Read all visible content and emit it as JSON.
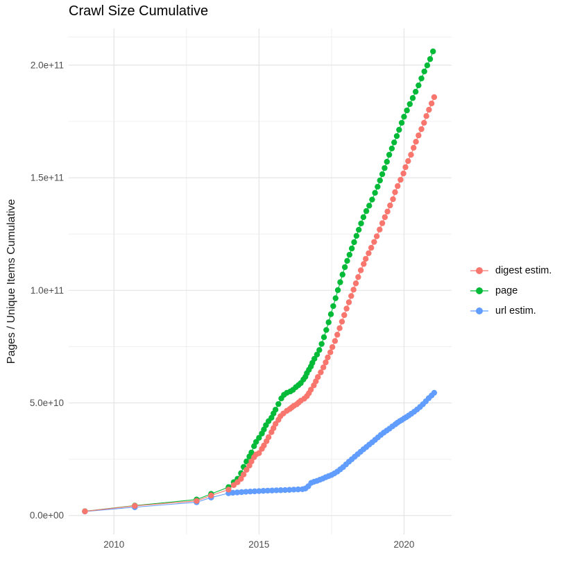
{
  "title": "Crawl Size Cumulative",
  "chart_data": {
    "type": "line",
    "title": "Crawl Size Cumulative",
    "xlabel": "",
    "ylabel": "Pages / Unique Items Cumulative",
    "value_unit": "billions (1e9) of pages / unique items",
    "xlim": [
      2008.44,
      2021.64
    ],
    "ylim": [
      -8.4,
      216.3
    ],
    "grid": true,
    "legend_position": "right",
    "x_ticks": [
      {
        "value": 2010,
        "label": "2010"
      },
      {
        "value": 2015,
        "label": "2015"
      },
      {
        "value": 2020,
        "label": "2020"
      }
    ],
    "x_minor_ticks": [
      2012.5,
      2017.5
    ],
    "y_ticks": [
      {
        "value": 0,
        "label": "0.0e+00"
      },
      {
        "value": 50,
        "label": "5.0e+10"
      },
      {
        "value": 100,
        "label": "1.0e+11"
      },
      {
        "value": 150,
        "label": "1.5e+11"
      },
      {
        "value": 200,
        "label": "2.0e+11"
      }
    ],
    "y_minor_ticks": [
      25,
      75,
      125,
      175,
      212.5
    ],
    "series": [
      {
        "name": "digest estim.",
        "color": "#F8766D",
        "points": [
          [
            2009.0,
            1.85
          ],
          [
            2010.72,
            4.3
          ],
          [
            2012.85,
            6.5
          ],
          [
            2013.35,
            8.9
          ],
          [
            2013.95,
            11.5
          ],
          [
            2014.13,
            13.5
          ],
          [
            2014.26,
            14.8
          ],
          [
            2014.38,
            16.3
          ],
          [
            2014.47,
            18.2
          ],
          [
            2014.57,
            20.3
          ],
          [
            2014.67,
            22.2
          ],
          [
            2014.74,
            24.0
          ],
          [
            2014.83,
            25.9
          ],
          [
            2014.9,
            27.1
          ],
          [
            2015.0,
            27.7
          ],
          [
            2015.1,
            29.6
          ],
          [
            2015.17,
            31.1
          ],
          [
            2015.26,
            33.0
          ],
          [
            2015.33,
            34.8
          ],
          [
            2015.43,
            37.0
          ],
          [
            2015.5,
            38.8
          ],
          [
            2015.57,
            40.7
          ],
          [
            2015.67,
            42.5
          ],
          [
            2015.74,
            44.1
          ],
          [
            2015.84,
            45.3
          ],
          [
            2015.96,
            46.5
          ],
          [
            2016.06,
            47.3
          ],
          [
            2016.13,
            48.0
          ],
          [
            2016.2,
            48.7
          ],
          [
            2016.3,
            49.4
          ],
          [
            2016.37,
            50.2
          ],
          [
            2016.44,
            51.0
          ],
          [
            2016.56,
            51.9
          ],
          [
            2016.65,
            53.0
          ],
          [
            2016.72,
            54.3
          ],
          [
            2016.79,
            55.9
          ],
          [
            2016.89,
            57.8
          ],
          [
            2016.96,
            59.6
          ],
          [
            2017.03,
            61.5
          ],
          [
            2017.13,
            63.6
          ],
          [
            2017.22,
            65.8
          ],
          [
            2017.3,
            68.0
          ],
          [
            2017.37,
            70.2
          ],
          [
            2017.46,
            72.5
          ],
          [
            2017.53,
            74.8
          ],
          [
            2017.62,
            77.5
          ],
          [
            2017.7,
            80.3
          ],
          [
            2017.78,
            83.2
          ],
          [
            2017.86,
            86.1
          ],
          [
            2017.94,
            89.0
          ],
          [
            2018.02,
            91.9
          ],
          [
            2018.1,
            94.7
          ],
          [
            2018.18,
            97.5
          ],
          [
            2018.26,
            100.3
          ],
          [
            2018.34,
            103.1
          ],
          [
            2018.42,
            105.9
          ],
          [
            2018.51,
            108.9
          ],
          [
            2018.61,
            111.7
          ],
          [
            2018.68,
            114.0
          ],
          [
            2018.78,
            116.5
          ],
          [
            2018.87,
            118.9
          ],
          [
            2018.97,
            121.5
          ],
          [
            2019.06,
            124.0
          ],
          [
            2019.16,
            127.0
          ],
          [
            2019.25,
            129.8
          ],
          [
            2019.34,
            132.5
          ],
          [
            2019.43,
            135.0
          ],
          [
            2019.52,
            137.7
          ],
          [
            2019.62,
            140.5
          ],
          [
            2019.69,
            143.6
          ],
          [
            2019.78,
            146.3
          ],
          [
            2019.88,
            149.1
          ],
          [
            2019.98,
            151.9
          ],
          [
            2020.05,
            154.7
          ],
          [
            2020.14,
            157.4
          ],
          [
            2020.24,
            160.2
          ],
          [
            2020.33,
            163.3
          ],
          [
            2020.41,
            166.0
          ],
          [
            2020.5,
            168.8
          ],
          [
            2020.6,
            171.6
          ],
          [
            2020.69,
            174.4
          ],
          [
            2020.77,
            177.4
          ],
          [
            2020.86,
            180.2
          ],
          [
            2020.95,
            183.0
          ],
          [
            2021.04,
            185.8
          ]
        ]
      },
      {
        "name": "page",
        "color": "#00BA38",
        "points": [
          [
            2009.0,
            1.9
          ],
          [
            2010.72,
            4.4
          ],
          [
            2012.85,
            7.1
          ],
          [
            2013.35,
            9.6
          ],
          [
            2013.95,
            12.6
          ],
          [
            2014.13,
            14.8
          ],
          [
            2014.26,
            16.3
          ],
          [
            2014.38,
            18.8
          ],
          [
            2014.47,
            21.6
          ],
          [
            2014.57,
            24.0
          ],
          [
            2014.67,
            26.2
          ],
          [
            2014.74,
            28.0
          ],
          [
            2014.83,
            30.8
          ],
          [
            2014.9,
            32.7
          ],
          [
            2015.0,
            34.5
          ],
          [
            2015.1,
            36.4
          ],
          [
            2015.17,
            38.2
          ],
          [
            2015.24,
            40.1
          ],
          [
            2015.33,
            41.9
          ],
          [
            2015.43,
            43.4
          ],
          [
            2015.5,
            45.3
          ],
          [
            2015.57,
            47.0
          ],
          [
            2015.67,
            49.5
          ],
          [
            2015.77,
            52.0
          ],
          [
            2015.86,
            53.6
          ],
          [
            2015.96,
            54.5
          ],
          [
            2016.08,
            55.1
          ],
          [
            2016.17,
            55.8
          ],
          [
            2016.27,
            57.0
          ],
          [
            2016.36,
            57.9
          ],
          [
            2016.44,
            58.8
          ],
          [
            2016.53,
            60.4
          ],
          [
            2016.6,
            61.6
          ],
          [
            2016.65,
            63.2
          ],
          [
            2016.72,
            64.7
          ],
          [
            2016.79,
            66.2
          ],
          [
            2016.84,
            67.8
          ],
          [
            2016.91,
            69.6
          ],
          [
            2017.0,
            71.5
          ],
          [
            2017.08,
            73.5
          ],
          [
            2017.16,
            76.2
          ],
          [
            2017.24,
            79.2
          ],
          [
            2017.32,
            82.4
          ],
          [
            2017.4,
            85.8
          ],
          [
            2017.48,
            89.4
          ],
          [
            2017.56,
            93.0
          ],
          [
            2017.64,
            96.5
          ],
          [
            2017.72,
            100.1
          ],
          [
            2017.8,
            103.6
          ],
          [
            2017.88,
            107.0
          ],
          [
            2017.96,
            110.3
          ],
          [
            2018.04,
            113.1
          ],
          [
            2018.12,
            115.8
          ],
          [
            2018.2,
            118.6
          ],
          [
            2018.28,
            121.4
          ],
          [
            2018.36,
            124.2
          ],
          [
            2018.44,
            126.9
          ],
          [
            2018.52,
            129.7
          ],
          [
            2018.6,
            132.5
          ],
          [
            2018.7,
            135.2
          ],
          [
            2018.8,
            137.6
          ],
          [
            2018.9,
            140.3
          ],
          [
            2019.0,
            143.3
          ],
          [
            2019.09,
            146.0
          ],
          [
            2019.17,
            148.8
          ],
          [
            2019.25,
            151.6
          ],
          [
            2019.33,
            154.3
          ],
          [
            2019.41,
            157.1
          ],
          [
            2019.49,
            160.2
          ],
          [
            2019.58,
            163.0
          ],
          [
            2019.66,
            165.7
          ],
          [
            2019.75,
            168.5
          ],
          [
            2019.83,
            171.3
          ],
          [
            2019.92,
            174.4
          ],
          [
            2020.0,
            177.1
          ],
          [
            2020.1,
            179.9
          ],
          [
            2020.2,
            182.7
          ],
          [
            2020.3,
            185.4
          ],
          [
            2020.4,
            188.2
          ],
          [
            2020.5,
            191.0
          ],
          [
            2020.6,
            194.1
          ],
          [
            2020.7,
            197.2
          ],
          [
            2020.8,
            199.9
          ],
          [
            2020.9,
            202.7
          ],
          [
            2021.0,
            206.1
          ]
        ]
      },
      {
        "name": "url estim.",
        "color": "#619CFF",
        "points": [
          [
            2009.0,
            1.8
          ],
          [
            2010.72,
            3.7
          ],
          [
            2012.85,
            5.9
          ],
          [
            2013.35,
            8.0
          ],
          [
            2013.95,
            9.9
          ],
          [
            2014.1,
            10.1
          ],
          [
            2014.25,
            10.25
          ],
          [
            2014.4,
            10.4
          ],
          [
            2014.55,
            10.55
          ],
          [
            2014.7,
            10.65
          ],
          [
            2014.85,
            10.75
          ],
          [
            2015.0,
            10.85
          ],
          [
            2015.15,
            10.95
          ],
          [
            2015.3,
            11.05
          ],
          [
            2015.45,
            11.1
          ],
          [
            2015.6,
            11.2
          ],
          [
            2015.75,
            11.25
          ],
          [
            2015.9,
            11.3
          ],
          [
            2016.05,
            11.4
          ],
          [
            2016.2,
            11.5
          ],
          [
            2016.35,
            11.6
          ],
          [
            2016.5,
            11.7
          ],
          [
            2016.6,
            12.0
          ],
          [
            2016.7,
            13.0
          ],
          [
            2016.8,
            14.5
          ],
          [
            2016.9,
            15.0
          ],
          [
            2017.0,
            15.4
          ],
          [
            2017.1,
            15.9
          ],
          [
            2017.2,
            16.4
          ],
          [
            2017.3,
            17.0
          ],
          [
            2017.4,
            17.5
          ],
          [
            2017.5,
            18.0
          ],
          [
            2017.6,
            18.7
          ],
          [
            2017.7,
            19.5
          ],
          [
            2017.8,
            20.5
          ],
          [
            2017.9,
            21.5
          ],
          [
            2018.0,
            22.7
          ],
          [
            2018.1,
            23.9
          ],
          [
            2018.2,
            25.0
          ],
          [
            2018.3,
            26.1
          ],
          [
            2018.4,
            27.2
          ],
          [
            2018.5,
            28.3
          ],
          [
            2018.6,
            29.4
          ],
          [
            2018.7,
            30.4
          ],
          [
            2018.8,
            31.5
          ],
          [
            2018.9,
            32.5
          ],
          [
            2019.0,
            33.6
          ],
          [
            2019.1,
            34.7
          ],
          [
            2019.2,
            35.8
          ],
          [
            2019.3,
            36.8
          ],
          [
            2019.4,
            37.7
          ],
          [
            2019.5,
            38.6
          ],
          [
            2019.6,
            39.6
          ],
          [
            2019.7,
            40.5
          ],
          [
            2019.77,
            41.2
          ],
          [
            2019.85,
            41.9
          ],
          [
            2019.92,
            42.4
          ],
          [
            2020.0,
            43.1
          ],
          [
            2020.08,
            43.7
          ],
          [
            2020.16,
            44.4
          ],
          [
            2020.25,
            45.2
          ],
          [
            2020.35,
            46.1
          ],
          [
            2020.45,
            47.1
          ],
          [
            2020.55,
            48.2
          ],
          [
            2020.65,
            49.4
          ],
          [
            2020.75,
            50.7
          ],
          [
            2020.85,
            52.1
          ],
          [
            2020.95,
            53.3
          ],
          [
            2021.04,
            54.5
          ]
        ]
      }
    ]
  },
  "colors": {
    "background": "#FFFFFF",
    "grid_major": "#E4E4E4",
    "grid_minor": "#F0F0F0",
    "axis_text": "#4D4D4D",
    "title_text": "#000000"
  }
}
